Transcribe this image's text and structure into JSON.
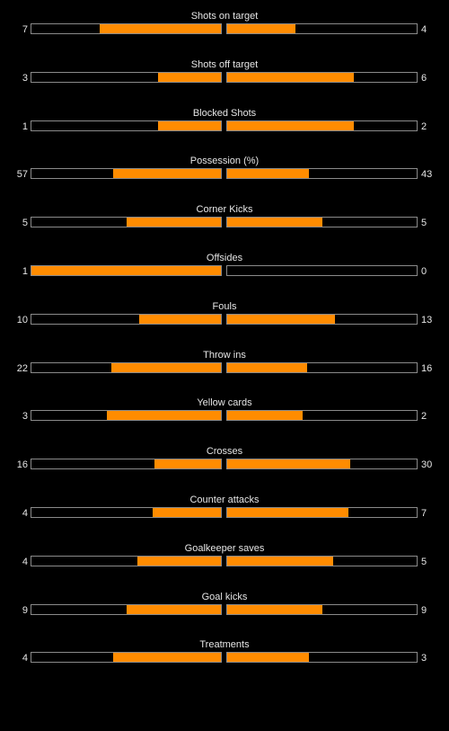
{
  "accent_color": "#ff8c00",
  "stats": [
    {
      "label": "Shots on target",
      "home": "7",
      "away": "4",
      "home_fill": 0.64,
      "away_fill": 0.36
    },
    {
      "label": "Shots off target",
      "home": "3",
      "away": "6",
      "home_fill": 0.33,
      "away_fill": 0.67
    },
    {
      "label": "Blocked Shots",
      "home": "1",
      "away": "2",
      "home_fill": 0.33,
      "away_fill": 0.67
    },
    {
      "label": "Possession (%)",
      "home": "57",
      "away": "43",
      "home_fill": 0.57,
      "away_fill": 0.43
    },
    {
      "label": "Corner Kicks",
      "home": "5",
      "away": "5",
      "home_fill": 0.5,
      "away_fill": 0.5
    },
    {
      "label": "Offsides",
      "home": "1",
      "away": "0",
      "home_fill": 1.0,
      "away_fill": 0.0
    },
    {
      "label": "Fouls",
      "home": "10",
      "away": "13",
      "home_fill": 0.43,
      "away_fill": 0.57
    },
    {
      "label": "Throw ins",
      "home": "22",
      "away": "16",
      "home_fill": 0.58,
      "away_fill": 0.42
    },
    {
      "label": "Yellow cards",
      "home": "3",
      "away": "2",
      "home_fill": 0.6,
      "away_fill": 0.4
    },
    {
      "label": "Crosses",
      "home": "16",
      "away": "30",
      "home_fill": 0.35,
      "away_fill": 0.65
    },
    {
      "label": "Counter attacks",
      "home": "4",
      "away": "7",
      "home_fill": 0.36,
      "away_fill": 0.64
    },
    {
      "label": "Goalkeeper saves",
      "home": "4",
      "away": "5",
      "home_fill": 0.44,
      "away_fill": 0.56
    },
    {
      "label": "Goal kicks",
      "home": "9",
      "away": "9",
      "home_fill": 0.5,
      "away_fill": 0.5
    },
    {
      "label": "Treatments",
      "home": "4",
      "away": "3",
      "home_fill": 0.57,
      "away_fill": 0.43
    }
  ]
}
